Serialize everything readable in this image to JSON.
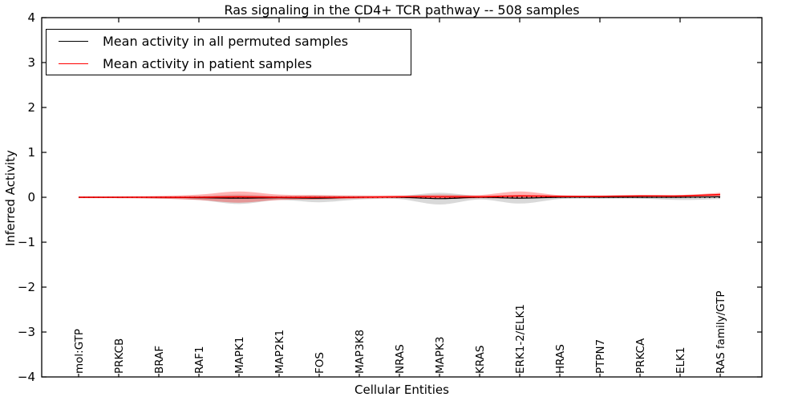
{
  "figure": {
    "title": "Ras signaling in the CD4+ TCR pathway -- 508 samples",
    "xlabel": "Cellular Entities",
    "ylabel": "Inferred Activity"
  },
  "chart_data": {
    "type": "line",
    "title": "Ras signaling in the CD4+ TCR pathway -- 508 samples",
    "xlabel": "Cellular Entities",
    "ylabel": "Inferred Activity",
    "ylim": [
      -4,
      4
    ],
    "yticks": [
      4,
      3,
      2,
      1,
      0,
      -1,
      -2,
      -3,
      -4
    ],
    "grid": false,
    "legend_position": "upper left",
    "legend": [
      {
        "label": "Mean activity in all permuted samples",
        "color": "#000000"
      },
      {
        "label": "Mean activity in patient samples",
        "color": "#ff0000"
      }
    ],
    "zero_line": {
      "y": 0,
      "style": "dotted",
      "color": "#000000"
    },
    "categories": [
      "mol:GTP",
      "PRKCB",
      "BRAF",
      "RAF1",
      "MAPK1",
      "MAP2K1",
      "FOS",
      "MAP3K8",
      "NRAS",
      "MAPK3",
      "KRAS",
      "ERK1-2/ELK1",
      "HRAS",
      "PTPN7",
      "PRKCA",
      "ELK1",
      "RAS family/GTP"
    ],
    "series": [
      {
        "name": "Mean activity in all permuted samples",
        "color": "#000000",
        "band_color": "#888888",
        "band_opacity": 0.32,
        "mean": [
          0,
          0,
          0,
          -0.01,
          -0.02,
          -0.01,
          -0.02,
          0,
          0,
          -0.03,
          0,
          -0.02,
          0,
          0,
          0,
          0,
          0.01
        ],
        "upper": [
          0.02,
          0.02,
          0.02,
          0.03,
          0.06,
          0.03,
          0.04,
          0.03,
          0.03,
          0.1,
          0.03,
          0.05,
          0.03,
          0.02,
          0.02,
          0.03,
          0.04
        ],
        "lower": [
          -0.02,
          -0.02,
          -0.03,
          -0.06,
          -0.15,
          -0.06,
          -0.11,
          -0.05,
          -0.04,
          -0.16,
          -0.05,
          -0.14,
          -0.04,
          -0.03,
          -0.03,
          -0.06,
          -0.04
        ]
      },
      {
        "name": "Mean activity in patient samples",
        "color": "#ff0000",
        "band_color": "#ff0000",
        "band_opacity": 0.3,
        "mean": [
          0,
          0,
          0,
          0,
          0.01,
          0,
          0,
          0,
          0.01,
          0.01,
          0.01,
          0.03,
          0.02,
          0.02,
          0.03,
          0.03,
          0.06
        ],
        "upper": [
          0.02,
          0.02,
          0.03,
          0.06,
          0.13,
          0.06,
          0.05,
          0.04,
          0.04,
          0.06,
          0.05,
          0.13,
          0.05,
          0.04,
          0.05,
          0.05,
          0.1
        ],
        "lower": [
          -0.02,
          -0.02,
          -0.03,
          -0.06,
          -0.12,
          -0.06,
          -0.05,
          -0.03,
          -0.02,
          -0.04,
          -0.02,
          -0.03,
          0,
          0,
          0.01,
          0.01,
          0.02
        ]
      }
    ]
  }
}
